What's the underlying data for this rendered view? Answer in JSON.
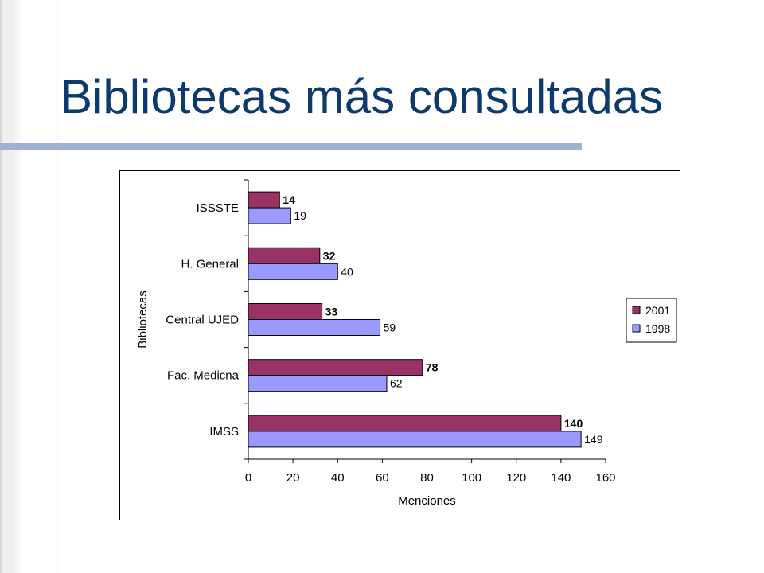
{
  "slide": {
    "title": "Bibliotecas más consultadas",
    "colors": {
      "title": "#0c3a6e",
      "rule": "#9db3cd"
    }
  },
  "chart_data": {
    "type": "bar",
    "orientation": "horizontal",
    "title": "",
    "xlabel": "Menciones",
    "ylabel": "Bibliotecas",
    "xlim": [
      0,
      160
    ],
    "xticks": [
      0,
      20,
      40,
      60,
      80,
      100,
      120,
      140,
      160
    ],
    "categories": [
      "ISSSTE",
      "H. General",
      "Central UJED",
      "Fac. Medicna",
      "IMSS"
    ],
    "series": [
      {
        "name": "2001",
        "values": [
          14,
          32,
          33,
          78,
          140
        ],
        "color": "#993366",
        "label_weight": "bold"
      },
      {
        "name": "1998",
        "values": [
          19,
          40,
          59,
          62,
          149
        ],
        "color": "#9999ff",
        "label_weight": "normal"
      }
    ],
    "legend": "right",
    "grid": false
  }
}
